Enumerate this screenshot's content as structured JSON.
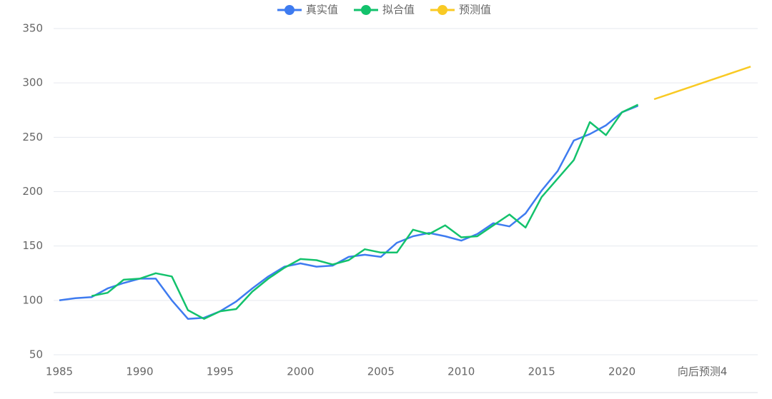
{
  "chart_data": {
    "type": "line",
    "categories": [
      "1985",
      null,
      null,
      null,
      null,
      "1990",
      null,
      null,
      null,
      null,
      "1995",
      null,
      null,
      null,
      null,
      "2000",
      null,
      null,
      null,
      null,
      "2005",
      null,
      null,
      null,
      null,
      "2010",
      null,
      null,
      null,
      null,
      "2015",
      null,
      null,
      null,
      null,
      "2020",
      null,
      null,
      null,
      null,
      "向后预测4",
      null,
      null,
      null
    ],
    "series": [
      {
        "name": "真实值",
        "color": "#3e7bf0",
        "values": [
          100,
          102,
          103,
          111,
          116,
          120,
          120,
          100,
          83,
          84,
          90,
          99,
          111,
          122,
          131,
          134,
          131,
          132,
          140,
          142,
          140,
          153,
          159,
          162,
          159,
          155,
          161,
          171,
          168,
          180,
          201,
          219,
          247,
          253,
          261,
          273,
          279,
          null,
          null,
          null,
          null,
          null,
          null,
          null
        ]
      },
      {
        "name": "拟合值",
        "color": "#13c26c",
        "values": [
          null,
          null,
          104,
          107,
          119,
          120,
          125,
          122,
          91,
          83,
          90,
          92,
          108,
          120,
          130,
          138,
          137,
          133,
          137,
          147,
          144,
          144,
          165,
          161,
          169,
          158,
          159,
          169,
          179,
          167,
          195,
          212,
          229,
          264,
          252,
          273,
          280,
          null,
          null,
          null,
          null,
          null,
          null,
          null
        ]
      },
      {
        "name": "预测值",
        "color": "#f9ca24",
        "values": [
          null,
          null,
          null,
          null,
          null,
          null,
          null,
          null,
          null,
          null,
          null,
          null,
          null,
          null,
          null,
          null,
          null,
          null,
          null,
          null,
          null,
          null,
          null,
          null,
          null,
          null,
          null,
          null,
          null,
          null,
          null,
          null,
          null,
          null,
          null,
          null,
          null,
          285,
          290,
          295,
          300,
          305,
          310,
          315
        ]
      }
    ],
    "ylim": [
      50,
      350
    ],
    "yticks": [
      50,
      100,
      150,
      200,
      250,
      300,
      350
    ],
    "grid": true
  }
}
